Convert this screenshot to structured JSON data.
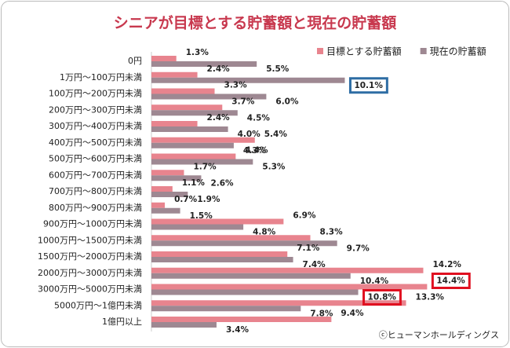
{
  "chart_data": {
    "type": "bar",
    "orientation": "horizontal",
    "title": "シニアが目標とする貯蓄額と現在の貯蓄額",
    "categories": [
      "0円",
      "1万円～100万円未満",
      "100万円～200万円未満",
      "200万円～300万円未満",
      "300万円～400万円未満",
      "400万円～500万円未満",
      "500万円～600万円未満",
      "600万円～700万円未満",
      "700万円～800万円未満",
      "800万円～900万円未満",
      "900万円～1000万円未満",
      "1000万円～1500万円未満",
      "1500万円～2000万円未満",
      "2000万円～3000万円未満",
      "3000万円～5000万円未満",
      "5000万円～1億円未満",
      "1億円以上"
    ],
    "series": [
      {
        "name": "目標とする貯蓄額",
        "color": "#e8848e",
        "values": [
          1.3,
          2.4,
          3.3,
          3.7,
          2.4,
          5.4,
          4.4,
          1.7,
          1.1,
          0.7,
          6.9,
          8.3,
          7.1,
          14.2,
          14.4,
          13.3,
          9.4
        ],
        "value_labels": [
          "1.3%",
          "2.4%",
          "3.3%",
          "3.7%",
          "2.4%",
          "5.4%",
          "4.4%",
          "1.7%",
          "1.1%",
          "0.7%",
          "6.9%",
          "8.3%",
          "7.1%",
          "14.2%",
          "14.4%",
          "13.3%",
          "9.4%"
        ]
      },
      {
        "name": "現在の貯蓄額",
        "color": "#9e8892",
        "values": [
          5.5,
          10.1,
          6.0,
          4.5,
          4.0,
          4.3,
          5.3,
          2.6,
          1.9,
          1.5,
          4.8,
          9.7,
          7.4,
          10.4,
          10.8,
          7.8,
          3.4
        ],
        "value_labels": [
          "5.5%",
          "10.1%",
          "6.0%",
          "4.5%",
          "4.0%",
          "4.3%",
          "5.3%",
          "2.6%",
          "1.9%",
          "1.5%",
          "4.8%",
          "9.7%",
          "7.4%",
          "10.4%",
          "10.8%",
          "7.8%",
          "3.4%"
        ]
      }
    ],
    "highlights": [
      {
        "series": 1,
        "index": 1,
        "color": "#2e6da4"
      },
      {
        "series": 0,
        "index": 14,
        "color": "#e01020"
      },
      {
        "series": 1,
        "index": 14,
        "color": "#e01020"
      }
    ],
    "legend": "top-right",
    "source": "ⓒヒューマンホールディングス"
  }
}
